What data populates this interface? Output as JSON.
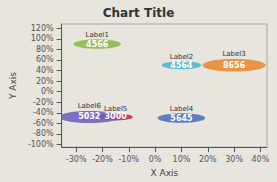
{
  "chart_data": {
    "type": "bubble",
    "title": "Chart Title",
    "xlabel": "X Axis",
    "ylabel": "Y Axis",
    "labels": [
      "Label1",
      "Label2",
      "Label3",
      "Label4",
      "Label5",
      "Label6"
    ],
    "x": [
      -0.22,
      0.1,
      0.3,
      0.1,
      -0.15,
      -0.25
    ],
    "values": [
      0.9,
      0.5,
      0.5,
      -0.5,
      -0.48,
      -0.48
    ],
    "sizes": [
      4566,
      4564,
      8656,
      5645,
      3000,
      5032
    ],
    "radius": [
      0.09,
      0.075,
      0.12,
      0.09,
      0.065,
      0.115
    ],
    "colors": [
      "#8db84a",
      "#4ab5cc",
      "#e88830",
      "#4a70bb",
      "#b83040",
      "#7060bb"
    ],
    "data_labels": true,
    "grid": false,
    "xlim": [
      -0.355,
      0.425
    ],
    "ylim": [
      -1.05,
      1.28
    ],
    "xticks": [
      {
        "value": -0.3,
        "label": "-30%"
      },
      {
        "value": -0.2,
        "label": "-20%"
      },
      {
        "value": -0.1,
        "label": "-10%"
      },
      {
        "value": 0.0,
        "label": "0%"
      },
      {
        "value": 0.1,
        "label": "10%"
      },
      {
        "value": 0.2,
        "label": "20%"
      },
      {
        "value": 0.3,
        "label": "30%"
      },
      {
        "value": 0.4,
        "label": "40%"
      }
    ],
    "yticks": [
      {
        "value": -1.0,
        "label": "-100%"
      },
      {
        "value": -0.8,
        "label": "-80%"
      },
      {
        "value": -0.6,
        "label": "-60%"
      },
      {
        "value": -0.4,
        "label": "-40%"
      },
      {
        "value": -0.2,
        "label": "-20%"
      },
      {
        "value": 0.0,
        "label": "0%"
      },
      {
        "value": 0.2,
        "label": "20%"
      },
      {
        "value": 0.4,
        "label": "40%"
      },
      {
        "value": 0.6,
        "label": "60%"
      },
      {
        "value": 0.8,
        "label": "80%"
      },
      {
        "value": 1.0,
        "label": "100%"
      },
      {
        "value": 1.2,
        "label": "120%"
      }
    ]
  }
}
